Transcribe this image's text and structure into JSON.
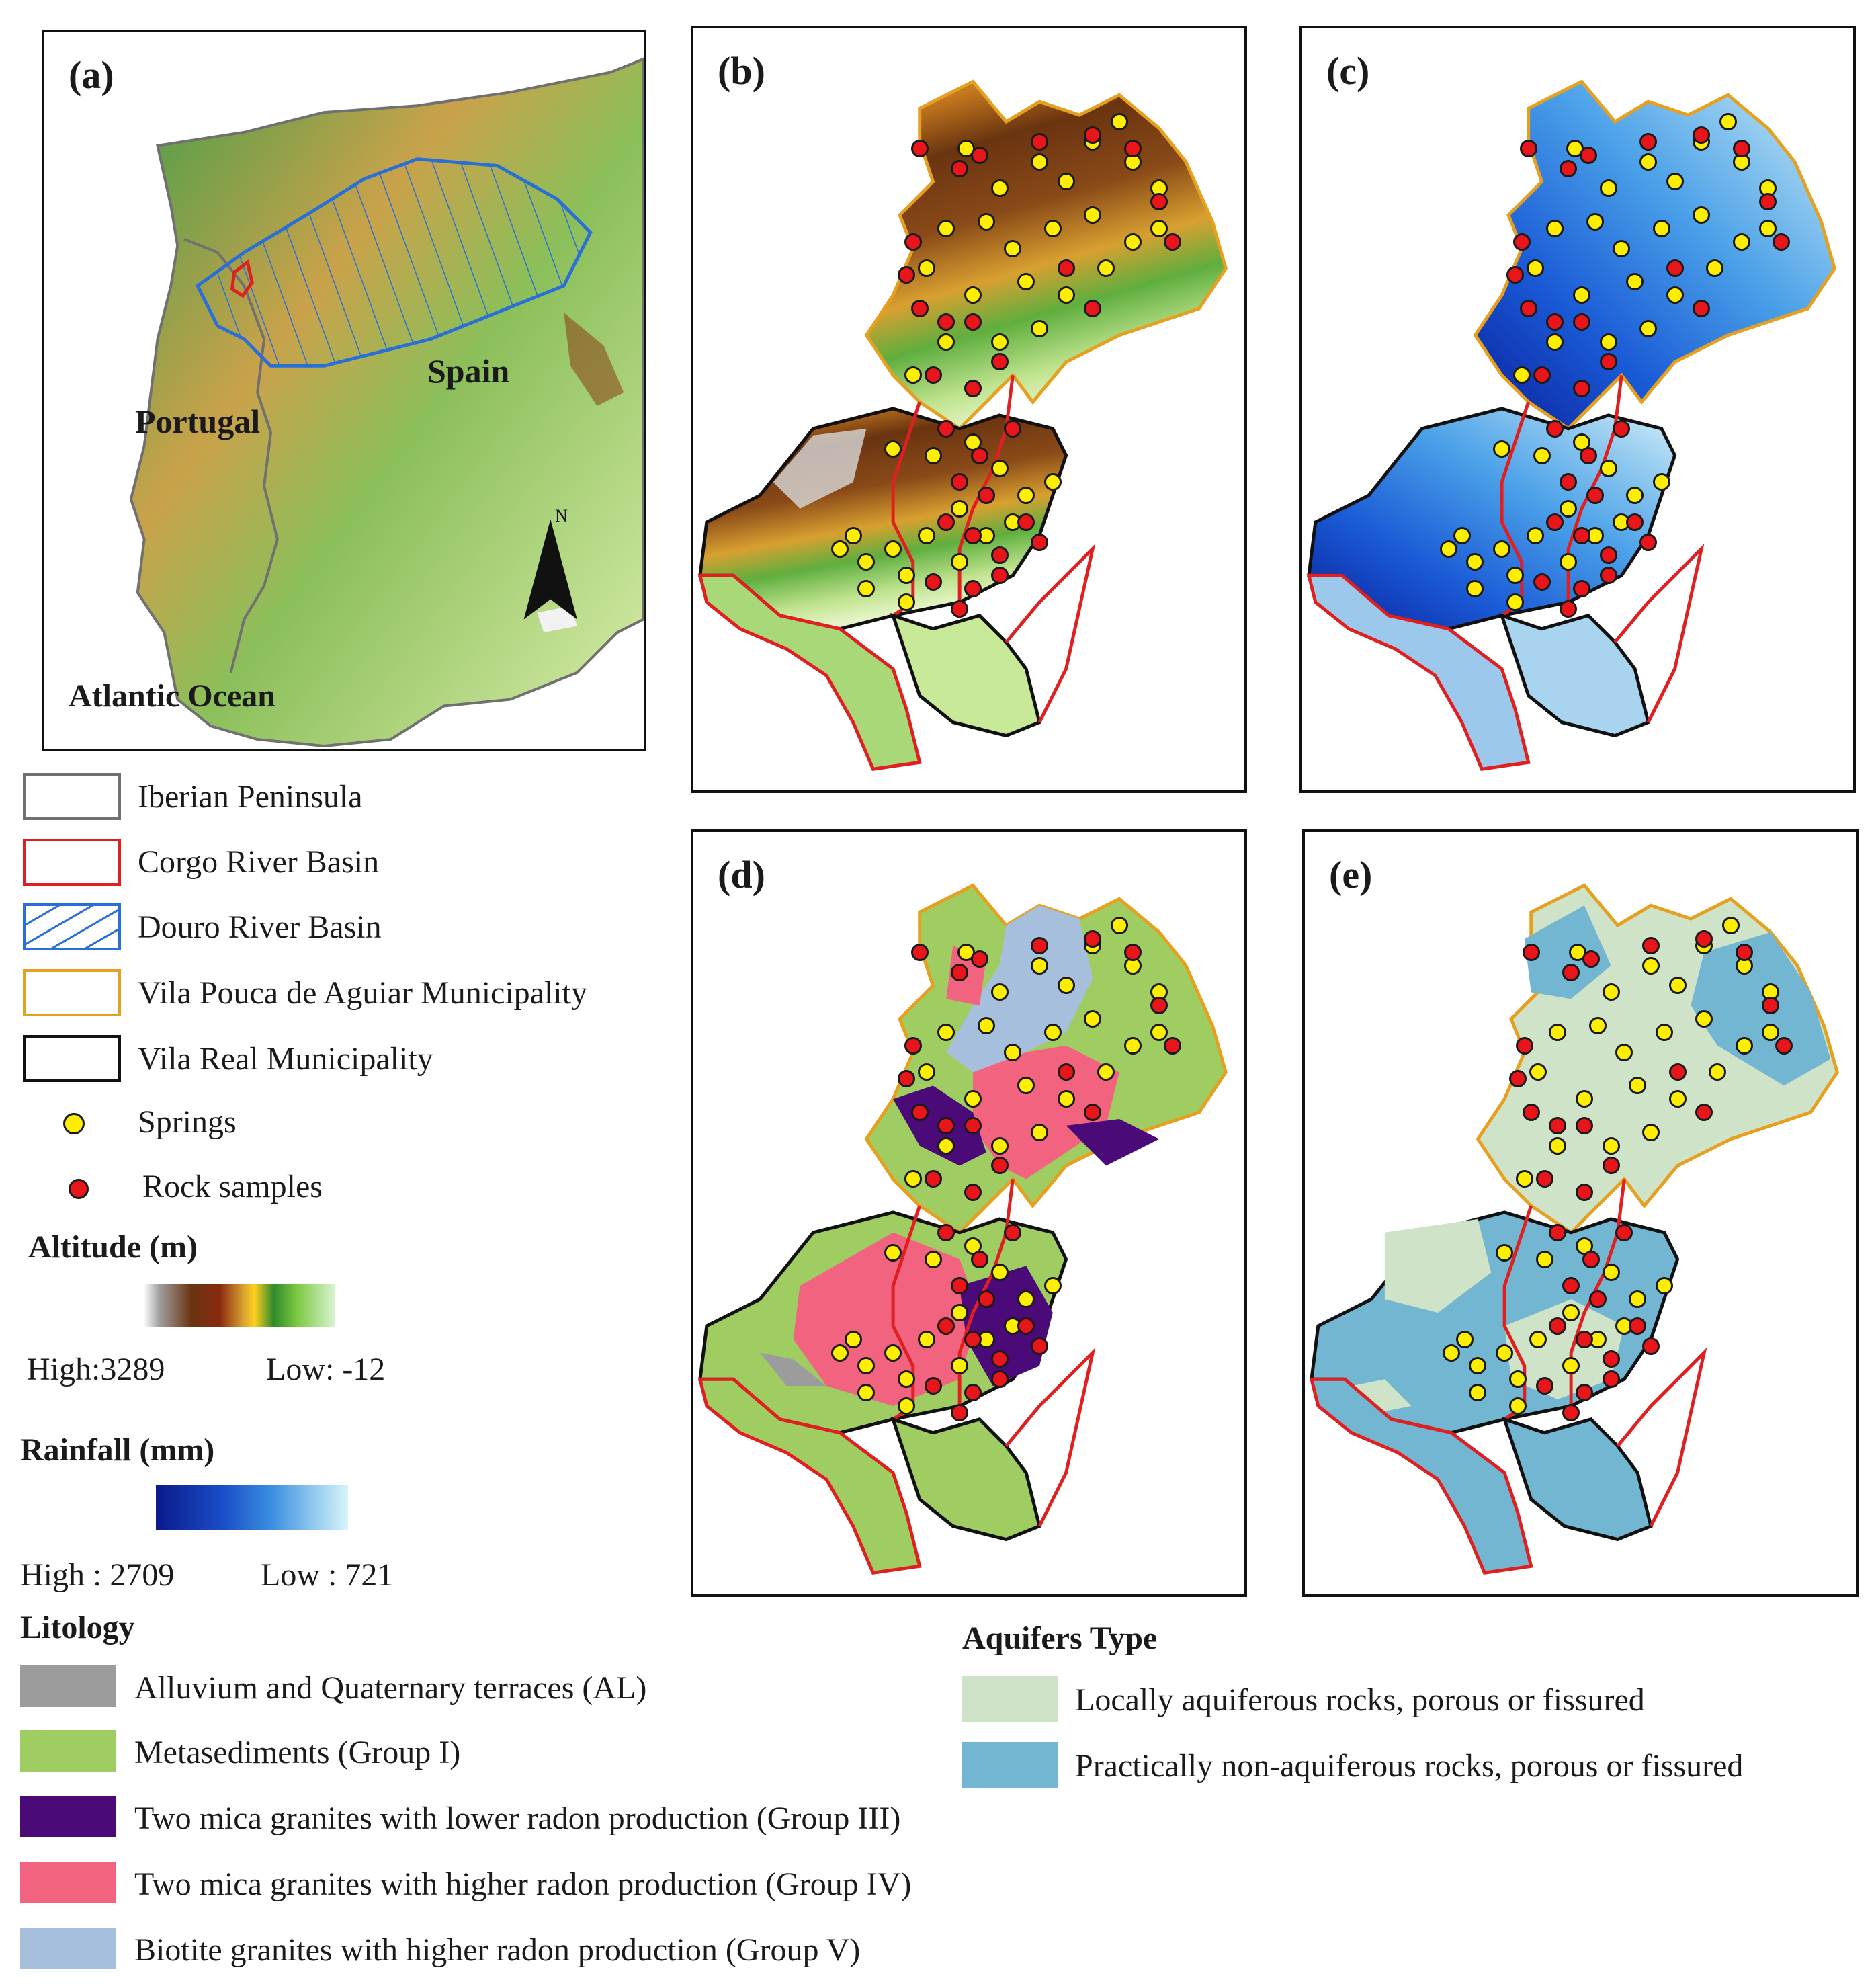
{
  "panels": {
    "a": {
      "label": "(a)",
      "ocean": "Atlantic Ocean",
      "portugal": "Portugal",
      "spain": "Spain",
      "north": "N"
    },
    "b": {
      "label": "(b)"
    },
    "c": {
      "label": "(c)"
    },
    "d": {
      "label": "(d)"
    },
    "e": {
      "label": "(e)"
    }
  },
  "boundary_legend": [
    {
      "label": "Iberian Peninsula",
      "color": "#707070",
      "style": "outline"
    },
    {
      "label": "Corgo River Basin",
      "color": "#e02020",
      "style": "outline"
    },
    {
      "label": "Douro River Basin",
      "color": "#2a6fd6",
      "style": "hatched"
    },
    {
      "label": "Vila Pouca de Aguiar Municipality",
      "color": "#e6a020",
      "style": "outline"
    },
    {
      "label": "Vila Real Municipality",
      "color": "#111111",
      "style": "outline"
    }
  ],
  "point_legend": [
    {
      "label": "Springs",
      "color": "#ffee00"
    },
    {
      "label": "Rock samples",
      "color": "#e8161b"
    }
  ],
  "altitude": {
    "title": "Altitude (m)",
    "high": "High:3289",
    "low": "Low: -12"
  },
  "rainfall": {
    "title": "Rainfall (mm)",
    "high": "High : 2709",
    "low": "Low : 721"
  },
  "lithology": {
    "title": "Litology",
    "items": [
      {
        "label": "Alluvium and Quaternary terraces (AL)",
        "color": "#9c9c9c"
      },
      {
        "label": "Metasediments (Group I)",
        "color": "#9fcd62"
      },
      {
        "label": "Two mica granites with lower radon production (Group III)",
        "color": "#4a0a78"
      },
      {
        "label": "Two mica granites with higher radon production (Group IV)",
        "color": "#f2637f"
      },
      {
        "label": "Biotite granites with higher radon production (Group V)",
        "color": "#a6bfdc"
      }
    ]
  },
  "aquifers": {
    "title": "Aquifers Type",
    "items": [
      {
        "label": "Locally aquiferous rocks, porous or fissured",
        "color": "#cfe3c8"
      },
      {
        "label": "Practically non-aquiferous rocks, porous or fissured",
        "color": "#72b6d2"
      }
    ]
  }
}
